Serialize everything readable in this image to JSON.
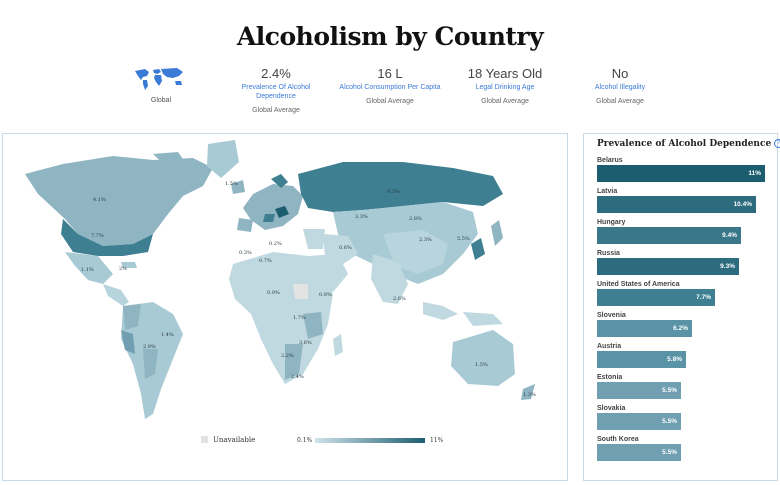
{
  "title": "Alcoholism by Country",
  "globe": {
    "label": "Global"
  },
  "stats": [
    {
      "value": "2.4%",
      "label": "Prevalence Of Alcohol Dependence",
      "sub": "Global Average"
    },
    {
      "value": "16 L",
      "label": "Alcohol Consumption Per Capita",
      "sub": "Global Average"
    },
    {
      "value": "18 Years Old",
      "label": "Legal Drinking Age",
      "sub": "Global Average"
    },
    {
      "value": "No",
      "label": "Alcohol Illegality",
      "sub": "Global Average"
    }
  ],
  "sidebar": {
    "title": "Prevalence of Alcohol Dependence",
    "info_icon": "info-icon",
    "max_value": 11,
    "items": [
      {
        "name": "Belarus",
        "value": 11,
        "label": "11%"
      },
      {
        "name": "Latvia",
        "value": 10.4,
        "label": "10.4%"
      },
      {
        "name": "Hungary",
        "value": 9.4,
        "label": "9.4%"
      },
      {
        "name": "Russia",
        "value": 9.3,
        "label": "9.3%"
      },
      {
        "name": "United States of America",
        "value": 7.7,
        "label": "7.7%"
      },
      {
        "name": "Slovenia",
        "value": 6.2,
        "label": "6.2%"
      },
      {
        "name": "Austria",
        "value": 5.8,
        "label": "5.8%"
      },
      {
        "name": "Estonia",
        "value": 5.5,
        "label": "5.5%"
      },
      {
        "name": "Slovakia",
        "value": 5.5,
        "label": "5.5%"
      },
      {
        "name": "South Korea",
        "value": 5.5,
        "label": "5.5%"
      }
    ]
  },
  "legend": {
    "unavailable": "Unavailable",
    "min": "0.1%",
    "max": "11%"
  },
  "colors": {
    "scale_low": "#cfe3ea",
    "scale_high": "#1d5d70",
    "unavailable": "#e3e3e3",
    "accent": "#3a7bd5"
  },
  "map_labels": [
    {
      "text": "4.1%"
    },
    {
      "text": "1.5%"
    },
    {
      "text": "7.7%"
    },
    {
      "text": "1.1%"
    },
    {
      "text": "2%"
    },
    {
      "text": "9.3%"
    },
    {
      "text": "3.3%"
    },
    {
      "text": "2.8%"
    },
    {
      "text": "2.3%"
    },
    {
      "text": "5.5%"
    },
    {
      "text": "0.3%"
    },
    {
      "text": "0.7%"
    },
    {
      "text": "0.2%"
    },
    {
      "text": "0.6%"
    },
    {
      "text": "1.4%"
    },
    {
      "text": "2.9%"
    },
    {
      "text": "2.6%"
    },
    {
      "text": "1.5%"
    },
    {
      "text": "1.3%"
    },
    {
      "text": "2.2%"
    },
    {
      "text": "2.4%"
    },
    {
      "text": "1.7%"
    },
    {
      "text": "0.8%"
    },
    {
      "text": "3.6%"
    },
    {
      "text": "0.9%"
    }
  ]
}
